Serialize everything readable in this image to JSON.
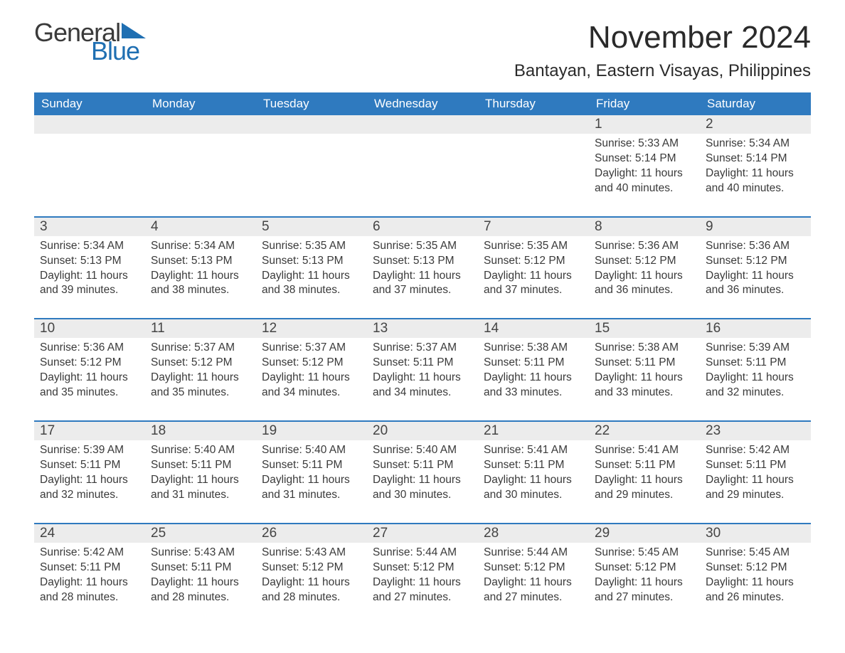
{
  "logo": {
    "text_general": "General",
    "text_blue": "Blue",
    "triangle_color": "#1f6fb2"
  },
  "header": {
    "month_title": "November 2024",
    "location": "Bantayan, Eastern Visayas, Philippines"
  },
  "colors": {
    "header_bg": "#2f7abf",
    "header_text": "#ffffff",
    "day_num_bg": "#ececec",
    "week_border": "#2f7abf",
    "body_text": "#3a3a3a",
    "logo_blue": "#1f6fb2",
    "background": "#ffffff"
  },
  "typography": {
    "month_title_fontsize": 44,
    "location_fontsize": 24,
    "dow_fontsize": 17,
    "daynum_fontsize": 19,
    "body_fontsize": 15.5
  },
  "calendar": {
    "type": "table",
    "columns": [
      "Sunday",
      "Monday",
      "Tuesday",
      "Wednesday",
      "Thursday",
      "Friday",
      "Saturday"
    ],
    "weeks": [
      [
        null,
        null,
        null,
        null,
        null,
        {
          "n": "1",
          "sunrise": "Sunrise: 5:33 AM",
          "sunset": "Sunset: 5:14 PM",
          "daylight": "Daylight: 11 hours and 40 minutes."
        },
        {
          "n": "2",
          "sunrise": "Sunrise: 5:34 AM",
          "sunset": "Sunset: 5:14 PM",
          "daylight": "Daylight: 11 hours and 40 minutes."
        }
      ],
      [
        {
          "n": "3",
          "sunrise": "Sunrise: 5:34 AM",
          "sunset": "Sunset: 5:13 PM",
          "daylight": "Daylight: 11 hours and 39 minutes."
        },
        {
          "n": "4",
          "sunrise": "Sunrise: 5:34 AM",
          "sunset": "Sunset: 5:13 PM",
          "daylight": "Daylight: 11 hours and 38 minutes."
        },
        {
          "n": "5",
          "sunrise": "Sunrise: 5:35 AM",
          "sunset": "Sunset: 5:13 PM",
          "daylight": "Daylight: 11 hours and 38 minutes."
        },
        {
          "n": "6",
          "sunrise": "Sunrise: 5:35 AM",
          "sunset": "Sunset: 5:13 PM",
          "daylight": "Daylight: 11 hours and 37 minutes."
        },
        {
          "n": "7",
          "sunrise": "Sunrise: 5:35 AM",
          "sunset": "Sunset: 5:12 PM",
          "daylight": "Daylight: 11 hours and 37 minutes."
        },
        {
          "n": "8",
          "sunrise": "Sunrise: 5:36 AM",
          "sunset": "Sunset: 5:12 PM",
          "daylight": "Daylight: 11 hours and 36 minutes."
        },
        {
          "n": "9",
          "sunrise": "Sunrise: 5:36 AM",
          "sunset": "Sunset: 5:12 PM",
          "daylight": "Daylight: 11 hours and 36 minutes."
        }
      ],
      [
        {
          "n": "10",
          "sunrise": "Sunrise: 5:36 AM",
          "sunset": "Sunset: 5:12 PM",
          "daylight": "Daylight: 11 hours and 35 minutes."
        },
        {
          "n": "11",
          "sunrise": "Sunrise: 5:37 AM",
          "sunset": "Sunset: 5:12 PM",
          "daylight": "Daylight: 11 hours and 35 minutes."
        },
        {
          "n": "12",
          "sunrise": "Sunrise: 5:37 AM",
          "sunset": "Sunset: 5:12 PM",
          "daylight": "Daylight: 11 hours and 34 minutes."
        },
        {
          "n": "13",
          "sunrise": "Sunrise: 5:37 AM",
          "sunset": "Sunset: 5:11 PM",
          "daylight": "Daylight: 11 hours and 34 minutes."
        },
        {
          "n": "14",
          "sunrise": "Sunrise: 5:38 AM",
          "sunset": "Sunset: 5:11 PM",
          "daylight": "Daylight: 11 hours and 33 minutes."
        },
        {
          "n": "15",
          "sunrise": "Sunrise: 5:38 AM",
          "sunset": "Sunset: 5:11 PM",
          "daylight": "Daylight: 11 hours and 33 minutes."
        },
        {
          "n": "16",
          "sunrise": "Sunrise: 5:39 AM",
          "sunset": "Sunset: 5:11 PM",
          "daylight": "Daylight: 11 hours and 32 minutes."
        }
      ],
      [
        {
          "n": "17",
          "sunrise": "Sunrise: 5:39 AM",
          "sunset": "Sunset: 5:11 PM",
          "daylight": "Daylight: 11 hours and 32 minutes."
        },
        {
          "n": "18",
          "sunrise": "Sunrise: 5:40 AM",
          "sunset": "Sunset: 5:11 PM",
          "daylight": "Daylight: 11 hours and 31 minutes."
        },
        {
          "n": "19",
          "sunrise": "Sunrise: 5:40 AM",
          "sunset": "Sunset: 5:11 PM",
          "daylight": "Daylight: 11 hours and 31 minutes."
        },
        {
          "n": "20",
          "sunrise": "Sunrise: 5:40 AM",
          "sunset": "Sunset: 5:11 PM",
          "daylight": "Daylight: 11 hours and 30 minutes."
        },
        {
          "n": "21",
          "sunrise": "Sunrise: 5:41 AM",
          "sunset": "Sunset: 5:11 PM",
          "daylight": "Daylight: 11 hours and 30 minutes."
        },
        {
          "n": "22",
          "sunrise": "Sunrise: 5:41 AM",
          "sunset": "Sunset: 5:11 PM",
          "daylight": "Daylight: 11 hours and 29 minutes."
        },
        {
          "n": "23",
          "sunrise": "Sunrise: 5:42 AM",
          "sunset": "Sunset: 5:11 PM",
          "daylight": "Daylight: 11 hours and 29 minutes."
        }
      ],
      [
        {
          "n": "24",
          "sunrise": "Sunrise: 5:42 AM",
          "sunset": "Sunset: 5:11 PM",
          "daylight": "Daylight: 11 hours and 28 minutes."
        },
        {
          "n": "25",
          "sunrise": "Sunrise: 5:43 AM",
          "sunset": "Sunset: 5:11 PM",
          "daylight": "Daylight: 11 hours and 28 minutes."
        },
        {
          "n": "26",
          "sunrise": "Sunrise: 5:43 AM",
          "sunset": "Sunset: 5:12 PM",
          "daylight": "Daylight: 11 hours and 28 minutes."
        },
        {
          "n": "27",
          "sunrise": "Sunrise: 5:44 AM",
          "sunset": "Sunset: 5:12 PM",
          "daylight": "Daylight: 11 hours and 27 minutes."
        },
        {
          "n": "28",
          "sunrise": "Sunrise: 5:44 AM",
          "sunset": "Sunset: 5:12 PM",
          "daylight": "Daylight: 11 hours and 27 minutes."
        },
        {
          "n": "29",
          "sunrise": "Sunrise: 5:45 AM",
          "sunset": "Sunset: 5:12 PM",
          "daylight": "Daylight: 11 hours and 27 minutes."
        },
        {
          "n": "30",
          "sunrise": "Sunrise: 5:45 AM",
          "sunset": "Sunset: 5:12 PM",
          "daylight": "Daylight: 11 hours and 26 minutes."
        }
      ]
    ]
  }
}
